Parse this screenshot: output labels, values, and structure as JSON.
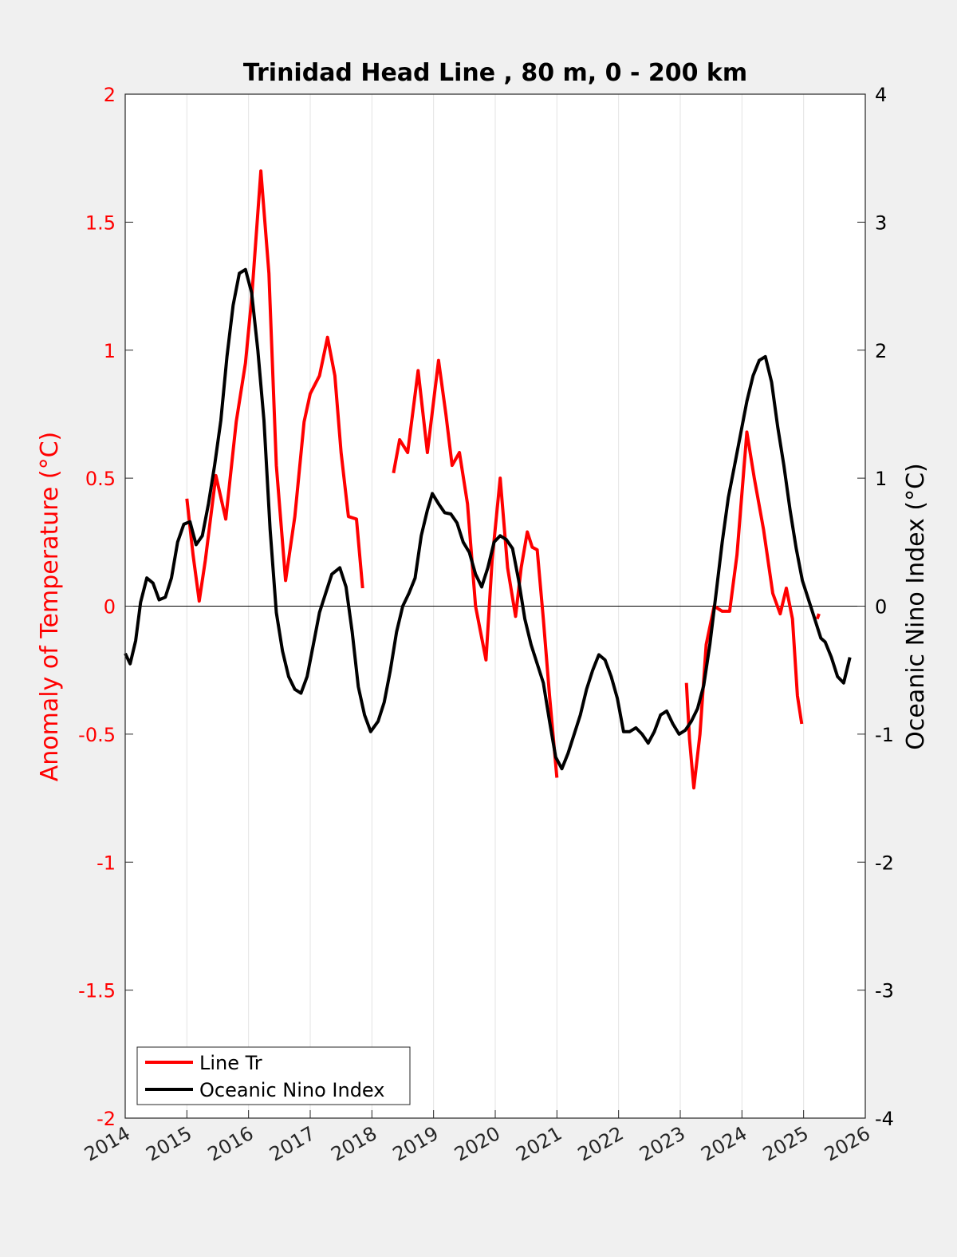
{
  "chart_data": {
    "type": "line",
    "title": "Trinidad Head Line , 80 m, 0 - 200 km",
    "xlabel": "",
    "ylabel_left": "Anomaly of Temperature (°C)",
    "ylabel_right": "Oceanic Nino Index (°C)",
    "xlim": [
      2014,
      2026
    ],
    "ylim_left": [
      -2,
      2
    ],
    "ylim_right": [
      -4,
      4
    ],
    "x_ticks": [
      "2014",
      "2015",
      "2016",
      "2017",
      "2018",
      "2019",
      "2020",
      "2021",
      "2022",
      "2023",
      "2024",
      "2025",
      "2026"
    ],
    "y_ticks_left": [
      "2",
      "1.5",
      "1",
      "0.5",
      "0",
      "-0.5",
      "-1",
      "-1.5",
      "-2"
    ],
    "y_ticks_right": [
      "4",
      "3",
      "2",
      "1",
      "0",
      "-1",
      "-2",
      "-3",
      "-4"
    ],
    "grid": "vertical",
    "legend_position": "bottom-left",
    "colors": {
      "line_tr": "#ff0000",
      "oni": "#000000",
      "left_axis": "#ff0000",
      "right_axis": "#000000"
    },
    "series": [
      {
        "name": "Line Tr",
        "axis": "left",
        "segments": [
          [
            [
              2015.0,
              0.42
            ],
            [
              2015.1,
              0.2
            ],
            [
              2015.2,
              0.02
            ],
            [
              2015.3,
              0.18
            ],
            [
              2015.47,
              0.51
            ],
            [
              2015.63,
              0.34
            ],
            [
              2015.8,
              0.72
            ],
            [
              2015.95,
              0.95
            ],
            [
              2016.05,
              1.2
            ],
            [
              2016.2,
              1.7
            ],
            [
              2016.33,
              1.3
            ],
            [
              2016.45,
              0.55
            ],
            [
              2016.6,
              0.1
            ],
            [
              2016.75,
              0.35
            ],
            [
              2016.9,
              0.72
            ],
            [
              2017.0,
              0.83
            ],
            [
              2017.15,
              0.9
            ],
            [
              2017.28,
              1.05
            ],
            [
              2017.4,
              0.9
            ],
            [
              2017.5,
              0.6
            ],
            [
              2017.62,
              0.35
            ],
            [
              2017.75,
              0.34
            ],
            [
              2017.85,
              0.07
            ]
          ],
          [
            [
              2018.35,
              0.52
            ],
            [
              2018.45,
              0.65
            ],
            [
              2018.58,
              0.6
            ],
            [
              2018.75,
              0.92
            ],
            [
              2018.9,
              0.6
            ],
            [
              2019.08,
              0.96
            ],
            [
              2019.2,
              0.75
            ],
            [
              2019.3,
              0.55
            ],
            [
              2019.42,
              0.6
            ],
            [
              2019.55,
              0.4
            ],
            [
              2019.68,
              0.0
            ],
            [
              2019.85,
              -0.21
            ],
            [
              2019.95,
              0.18
            ],
            [
              2020.08,
              0.5
            ],
            [
              2020.2,
              0.15
            ],
            [
              2020.33,
              -0.04
            ],
            [
              2020.42,
              0.15
            ],
            [
              2020.52,
              0.29
            ],
            [
              2020.6,
              0.23
            ],
            [
              2020.68,
              0.22
            ],
            [
              2020.78,
              -0.05
            ],
            [
              2020.88,
              -0.35
            ],
            [
              2021.0,
              -0.67
            ]
          ],
          [
            [
              2023.1,
              -0.3
            ],
            [
              2023.15,
              -0.52
            ],
            [
              2023.22,
              -0.71
            ],
            [
              2023.32,
              -0.5
            ],
            [
              2023.42,
              -0.15
            ],
            [
              2023.55,
              0.0
            ],
            [
              2023.68,
              -0.02
            ],
            [
              2023.8,
              -0.02
            ],
            [
              2023.92,
              0.2
            ],
            [
              2024.08,
              0.68
            ],
            [
              2024.2,
              0.5
            ],
            [
              2024.35,
              0.3
            ],
            [
              2024.5,
              0.05
            ],
            [
              2024.62,
              -0.03
            ],
            [
              2024.72,
              0.07
            ],
            [
              2024.82,
              -0.05
            ],
            [
              2024.9,
              -0.35
            ],
            [
              2024.97,
              -0.46
            ]
          ],
          [
            [
              2025.22,
              -0.05
            ],
            [
              2025.25,
              -0.03
            ]
          ]
        ]
      },
      {
        "name": "Oceanic Nino Index",
        "axis": "right",
        "segments": [
          [
            [
              2014.0,
              -0.37
            ],
            [
              2014.08,
              -0.45
            ],
            [
              2014.17,
              -0.27
            ],
            [
              2014.25,
              0.03
            ],
            [
              2014.35,
              0.22
            ],
            [
              2014.45,
              0.18
            ],
            [
              2014.55,
              0.05
            ],
            [
              2014.65,
              0.07
            ],
            [
              2014.75,
              0.22
            ],
            [
              2014.85,
              0.5
            ],
            [
              2014.95,
              0.64
            ],
            [
              2015.05,
              0.66
            ],
            [
              2015.15,
              0.48
            ],
            [
              2015.25,
              0.55
            ],
            [
              2015.35,
              0.8
            ],
            [
              2015.45,
              1.1
            ],
            [
              2015.55,
              1.45
            ],
            [
              2015.65,
              1.95
            ],
            [
              2015.75,
              2.35
            ],
            [
              2015.85,
              2.6
            ],
            [
              2015.95,
              2.63
            ],
            [
              2016.05,
              2.45
            ],
            [
              2016.15,
              2.0
            ],
            [
              2016.25,
              1.45
            ],
            [
              2016.35,
              0.6
            ],
            [
              2016.45,
              -0.05
            ],
            [
              2016.55,
              -0.35
            ],
            [
              2016.65,
              -0.55
            ],
            [
              2016.75,
              -0.65
            ],
            [
              2016.85,
              -0.68
            ],
            [
              2016.95,
              -0.55
            ],
            [
              2017.05,
              -0.3
            ],
            [
              2017.15,
              -0.05
            ],
            [
              2017.25,
              0.1
            ],
            [
              2017.35,
              0.25
            ],
            [
              2017.48,
              0.3
            ],
            [
              2017.58,
              0.15
            ],
            [
              2017.68,
              -0.2
            ],
            [
              2017.78,
              -0.63
            ],
            [
              2017.88,
              -0.85
            ],
            [
              2017.98,
              -0.98
            ],
            [
              2018.1,
              -0.9
            ],
            [
              2018.2,
              -0.75
            ],
            [
              2018.3,
              -0.5
            ],
            [
              2018.4,
              -0.2
            ],
            [
              2018.5,
              0.0
            ],
            [
              2018.6,
              0.1
            ],
            [
              2018.7,
              0.22
            ],
            [
              2018.8,
              0.55
            ],
            [
              2018.9,
              0.75
            ],
            [
              2018.98,
              0.88
            ],
            [
              2019.08,
              0.8
            ],
            [
              2019.18,
              0.73
            ],
            [
              2019.28,
              0.72
            ],
            [
              2019.38,
              0.65
            ],
            [
              2019.48,
              0.5
            ],
            [
              2019.58,
              0.42
            ],
            [
              2019.68,
              0.25
            ],
            [
              2019.78,
              0.15
            ],
            [
              2019.88,
              0.3
            ],
            [
              2019.98,
              0.5
            ],
            [
              2020.08,
              0.55
            ],
            [
              2020.18,
              0.52
            ],
            [
              2020.28,
              0.45
            ],
            [
              2020.38,
              0.2
            ],
            [
              2020.48,
              -0.1
            ],
            [
              2020.58,
              -0.3
            ],
            [
              2020.68,
              -0.45
            ],
            [
              2020.78,
              -0.6
            ],
            [
              2020.88,
              -0.9
            ],
            [
              2020.98,
              -1.18
            ],
            [
              2021.08,
              -1.27
            ],
            [
              2021.18,
              -1.15
            ],
            [
              2021.28,
              -1.0
            ],
            [
              2021.38,
              -0.85
            ],
            [
              2021.48,
              -0.65
            ],
            [
              2021.58,
              -0.5
            ],
            [
              2021.68,
              -0.38
            ],
            [
              2021.78,
              -0.42
            ],
            [
              2021.88,
              -0.55
            ],
            [
              2021.98,
              -0.72
            ],
            [
              2022.08,
              -0.98
            ],
            [
              2022.18,
              -0.98
            ],
            [
              2022.28,
              -0.95
            ],
            [
              2022.38,
              -1.0
            ],
            [
              2022.48,
              -1.07
            ],
            [
              2022.58,
              -0.98
            ],
            [
              2022.68,
              -0.85
            ],
            [
              2022.78,
              -0.82
            ],
            [
              2022.88,
              -0.92
            ],
            [
              2022.98,
              -1.0
            ],
            [
              2023.08,
              -0.97
            ],
            [
              2023.18,
              -0.9
            ],
            [
              2023.28,
              -0.8
            ],
            [
              2023.38,
              -0.62
            ],
            [
              2023.48,
              -0.3
            ],
            [
              2023.58,
              0.1
            ],
            [
              2023.68,
              0.5
            ],
            [
              2023.78,
              0.85
            ],
            [
              2023.88,
              1.1
            ],
            [
              2023.98,
              1.35
            ],
            [
              2024.08,
              1.6
            ],
            [
              2024.18,
              1.8
            ],
            [
              2024.28,
              1.92
            ],
            [
              2024.38,
              1.95
            ],
            [
              2024.48,
              1.75
            ],
            [
              2024.58,
              1.4
            ],
            [
              2024.68,
              1.1
            ],
            [
              2024.78,
              0.75
            ],
            [
              2024.88,
              0.45
            ],
            [
              2024.98,
              0.2
            ],
            [
              2025.08,
              0.05
            ],
            [
              2025.18,
              -0.1
            ],
            [
              2025.28,
              -0.25
            ],
            [
              2025.35,
              -0.28
            ],
            [
              2025.45,
              -0.4
            ],
            [
              2025.55,
              -0.55
            ],
            [
              2025.65,
              -0.6
            ],
            [
              2025.75,
              -0.4
            ]
          ]
        ]
      }
    ]
  }
}
